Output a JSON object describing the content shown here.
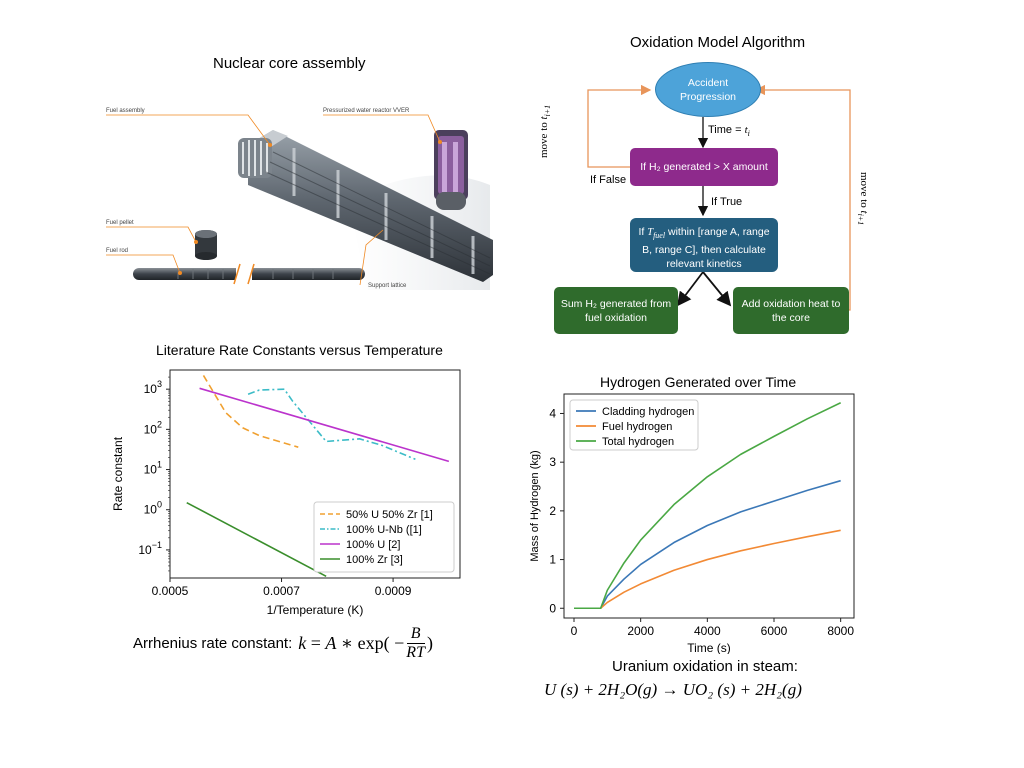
{
  "panels": {
    "core_title": "Nuclear core assembly",
    "flow_title": "Oxidation Model Algorithm",
    "rate_title": "Literature Rate Constants versus Temperature",
    "hydrogen_title": "Hydrogen Generated over Time"
  },
  "core_image": {
    "labels": {
      "fuel_assembly": "Fuel assembly",
      "pwr": "Pressurized water reactor VVER",
      "fuel_pellet": "Fuel pellet",
      "fuel_rod": "Fuel rod",
      "support_lattice": "Support lattice"
    },
    "colors": {
      "steel": "#5f6770",
      "dark": "#3d434a",
      "accent": "#f08a24"
    }
  },
  "flowchart": {
    "nodes": {
      "accident": "Accident Progression",
      "h2_check": "If H₂ generated > X amount",
      "temp_check_pre": "If ",
      "temp_check_var": "T",
      "temp_check_sub": "fuel",
      "temp_check_post": " within [range A, range B, range C], then calculate relevant kinetics",
      "sum_h2": "Sum H₂ generated from fuel oxidation",
      "add_heat": "Add oxidation heat to the core"
    },
    "edges": {
      "time_label": "Time = ",
      "time_var": "t",
      "time_sub": "i",
      "if_false": "If False",
      "if_true": "If True",
      "move_left": "move to ",
      "move_right": "move to ",
      "move_var": "t",
      "move_sub": "i+1"
    },
    "colors": {
      "accident": "#4da3d9",
      "h2_check": "#8e2a8c",
      "temp_check": "#245e7f",
      "result": "#2f6b2c",
      "loop_arrow": "#e8955a"
    }
  },
  "equations": {
    "arrhenius_label": "Arrhenius rate constant:",
    "arrhenius_k": "k",
    "arrhenius_eq": " = ",
    "arrhenius_A": "A",
    "arrhenius_mid": " ∗ exp( −",
    "arrhenius_num": "B",
    "arrhenius_den": "RT",
    "arrhenius_close": ")",
    "uranium_label": "Uranium oxidation in steam:",
    "uranium_reaction": "U (s) +  2H₂O(g) →  UO₂ (s) + 2H₂(g)"
  },
  "chart_data": [
    {
      "type": "line",
      "title": "Literature Rate Constants versus Temperature",
      "xlabel": "1/Temperature (K)",
      "ylabel": "Rate constant",
      "xlim": [
        0.0005,
        0.00102
      ],
      "ylim": [
        0.02,
        3000
      ],
      "yscale": "log",
      "xticks": [
        0.0005,
        0.0007,
        0.0009
      ],
      "xtick_labels": [
        "0.0005",
        "0.0007",
        "0.0009"
      ],
      "yticks": [
        0.1,
        1,
        10,
        100,
        1000
      ],
      "ytick_labels": [
        [
          "10",
          "−1"
        ],
        [
          "10",
          "0"
        ],
        [
          "10",
          "1"
        ],
        [
          "10",
          "2"
        ],
        [
          "10",
          "3"
        ]
      ],
      "legend_position": "bottom-right",
      "series": [
        {
          "name": "50% U 50% Zr [1]",
          "color": "#f0a030",
          "dash": "dashed",
          "x": [
            0.00056,
            0.0006,
            0.00063,
            0.00066,
            0.00073
          ],
          "y": [
            2200,
            260,
            110,
            70,
            36
          ]
        },
        {
          "name": "100% U-Nb ([1]",
          "color": "#3cbcc7",
          "dash": "dashdot",
          "x": [
            0.00064,
            0.00066,
            0.000705,
            0.00072,
            0.00078,
            0.00084,
            0.00088,
            0.00094
          ],
          "y": [
            750,
            950,
            1000,
            500,
            50,
            58,
            40,
            18
          ]
        },
        {
          "name": "100% U [2]",
          "color": "#bb33cc",
          "dash": "solid",
          "x": [
            0.000553,
            0.001
          ],
          "y": [
            1050,
            16
          ]
        },
        {
          "name": "100% Zr [3]",
          "color": "#3a8e2c",
          "dash": "solid",
          "x": [
            0.00053,
            0.00078
          ],
          "y": [
            1.5,
            0.022
          ]
        }
      ]
    },
    {
      "type": "line",
      "title": "Hydrogen Generated over Time",
      "xlabel": "Time (s)",
      "ylabel": "Mass of Hydrogen (kg)",
      "xlim": [
        -300,
        8400
      ],
      "ylim": [
        -0.2,
        4.4
      ],
      "xticks": [
        0,
        2000,
        4000,
        6000,
        8000
      ],
      "xtick_labels": [
        "0",
        "2000",
        "4000",
        "6000",
        "8000"
      ],
      "yticks": [
        0,
        1,
        2,
        3,
        4
      ],
      "ytick_labels": [
        "0",
        "1",
        "2",
        "3",
        "4"
      ],
      "legend_position": "top-left",
      "series": [
        {
          "name": "Cladding hydrogen",
          "color": "#3b78b7",
          "x": [
            0,
            800,
            1000,
            1500,
            2000,
            3000,
            4000,
            5000,
            6000,
            7000,
            8000
          ],
          "y": [
            0,
            0,
            0.25,
            0.6,
            0.9,
            1.35,
            1.7,
            1.98,
            2.2,
            2.42,
            2.62
          ]
        },
        {
          "name": "Fuel hydrogen",
          "color": "#f28a35",
          "x": [
            0,
            800,
            1000,
            1500,
            2000,
            3000,
            4000,
            5000,
            6000,
            7000,
            8000
          ],
          "y": [
            0,
            0,
            0.12,
            0.33,
            0.5,
            0.78,
            1.0,
            1.18,
            1.33,
            1.47,
            1.6
          ]
        },
        {
          "name": "Total hydrogen",
          "color": "#4aa844",
          "x": [
            0,
            800,
            1000,
            1500,
            2000,
            3000,
            4000,
            5000,
            6000,
            7000,
            8000
          ],
          "y": [
            0,
            0,
            0.37,
            0.93,
            1.4,
            2.13,
            2.7,
            3.16,
            3.53,
            3.89,
            4.22
          ]
        }
      ]
    }
  ]
}
